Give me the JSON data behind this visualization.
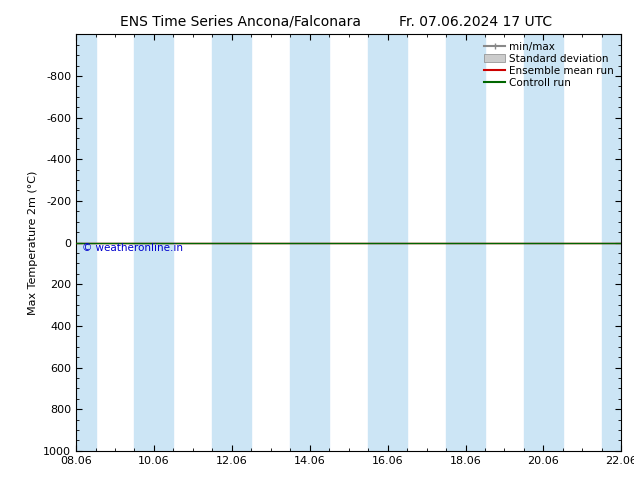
{
  "title_left": "ENS Time Series Ancona/Falconara",
  "title_right": "Fr. 07.06.2024 17 UTC",
  "ylabel": "Max Temperature 2m (°C)",
  "ylim_top": -1000,
  "ylim_bottom": 1000,
  "yticks": [
    -800,
    -600,
    -400,
    -200,
    0,
    200,
    400,
    600,
    800,
    1000
  ],
  "xtick_labels": [
    "08.06",
    "10.06",
    "12.06",
    "14.06",
    "16.06",
    "18.06",
    "20.06",
    "22.06"
  ],
  "xtick_positions": [
    0,
    2,
    4,
    6,
    8,
    10,
    12,
    14
  ],
  "x_min": 0,
  "x_max": 14,
  "shaded_bands": [
    [
      0,
      0.5
    ],
    [
      1.5,
      2.5
    ],
    [
      3.5,
      4.5
    ],
    [
      5.5,
      6.5
    ],
    [
      7.5,
      8.5
    ],
    [
      9.5,
      10.5
    ],
    [
      11.5,
      12.5
    ],
    [
      13.5,
      14
    ]
  ],
  "shade_color": "#cce5f5",
  "control_run_y": 0,
  "ensemble_mean_y": 0,
  "control_run_color": "#006600",
  "ensemble_mean_color": "#cc0000",
  "legend_items": [
    "min/max",
    "Standard deviation",
    "Ensemble mean run",
    "Controll run"
  ],
  "minmax_color": "#888888",
  "std_dev_color": "#cccccc",
  "watermark": "© weatheronline.in",
  "watermark_color": "#0000cc",
  "background_color": "#ffffff",
  "title_fontsize": 10,
  "axis_fontsize": 8,
  "ylabel_fontsize": 8,
  "legend_fontsize": 7.5
}
